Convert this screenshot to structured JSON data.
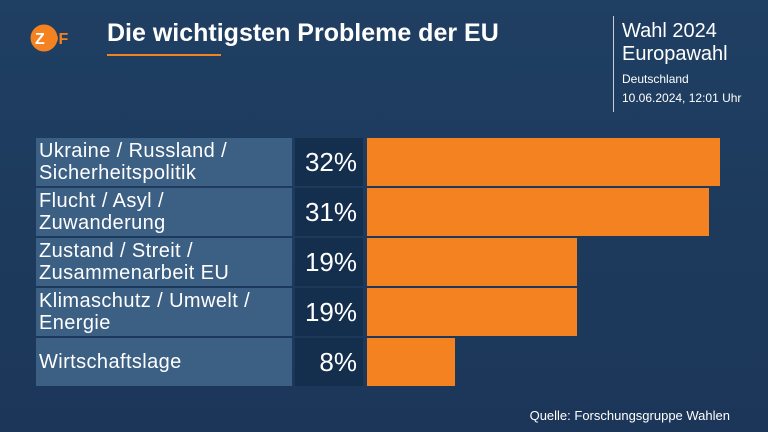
{
  "header": {
    "title": "Die wichtigsten Probleme der EU",
    "election": "Wahl 2024",
    "election_type": "Europawahl",
    "region": "Deutschland",
    "datetime": "10.06.2024, 12:01 Uhr"
  },
  "colors": {
    "accent": "#f58220",
    "label_bg": "#3c5f84",
    "value_bg": "#142e4d",
    "background": "#1f3f63"
  },
  "chart_data": {
    "type": "bar",
    "orientation": "horizontal",
    "categories": [
      "Ukraine / Russland / Sicherheitspolitik",
      "Flucht / Asyl / Zuwanderung",
      "Zustand / Streit / Zusammenarbeit EU",
      "Klimaschutz / Umwelt / Energie",
      "Wirtschaftslage"
    ],
    "values": [
      32,
      31,
      19,
      19,
      8
    ],
    "value_labels": [
      "32%",
      "31%",
      "19%",
      "19%",
      "8%"
    ],
    "xlim": [
      0,
      32
    ],
    "title": "Die wichtigsten Probleme der EU"
  },
  "footer": {
    "source": "Quelle: Forschungsgruppe Wahlen"
  }
}
